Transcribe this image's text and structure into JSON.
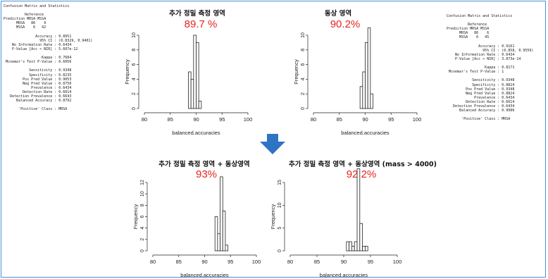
{
  "left_stats": {
    "lines": [
      "Confusion Matrix and Statistics",
      "",
      "          Reference",
      "Prediction MRSA MSSA",
      "      MRSA   86    9",
      "      MSSA    6   42",
      "",
      "               Accuracy : 0.8951",
      "                 95% CI : (0.8329, 0.9401)",
      "    No Information Rate : 0.6434",
      "    P-Value [Acc > NIR] : 5.607e-12",
      "",
      "                  Kappa : 0.7684",
      " Mcnemar's Test P-Value : 0.6056",
      "",
      "            Sensitivity : 0.9348",
      "            Specificity : 0.8235",
      "         Pos Pred Value : 0.9053",
      "         Neg Pred Value : 0.8750",
      "             Prevalence : 0.6434",
      "         Detection Rate : 0.6014",
      "   Detection Prevalence : 0.6643",
      "      Balanced Accuracy : 0.8792",
      "",
      "       'Positive' Class : MRSA"
    ]
  },
  "right_stats": {
    "lines": [
      "Confusion Matrix and Statistics",
      "",
      "          Reference",
      "Prediction MRSA MSSA",
      "      MRSA   86    6",
      "      MSSA    6   45",
      "",
      "               Accuracy : 0.9161",
      "                 95% CI : (0.858, 0.9559)",
      "    No Information Rate : 0.6434",
      "    P-Value [Acc > NIR] : 3.873e-14",
      "",
      "                  Kappa : 0.8171",
      " Mcnemar's Test P-Value : 1",
      "",
      "            Sensitivity : 0.9348",
      "            Specificity : 0.8824",
      "         Pos Pred Value : 0.9348",
      "         Neg Pred Value : 0.8824",
      "             Prevalence : 0.6434",
      "         Detection Rate : 0.6014",
      "   Detection Prevalence : 0.6434",
      "      Balanced Accuracy : 0.9086",
      "",
      "       'Positive' Class : MRSA"
    ]
  },
  "colors": {
    "accent_red": "#e8231f",
    "arrow_blue": "#2e73c4",
    "frame_blue": "#4a90d9"
  },
  "arrow_icon": "down-arrow-icon",
  "chart_data": [
    {
      "type": "bar",
      "title": "추가 정밀 측정 영역",
      "annotation": "89.7 %",
      "xlabel": "balanced.accuracies",
      "ylabel": "Frequency",
      "xlim": [
        80,
        100
      ],
      "ylim": [
        0,
        10
      ],
      "xticks": [
        "80",
        "85",
        "90",
        "95",
        "100"
      ],
      "yticks": [
        "0",
        "2",
        "4",
        "6",
        "8",
        "10"
      ],
      "bin_width": 0.5,
      "x": [
        88.5,
        89.0,
        89.5,
        90.0,
        90.5
      ],
      "values": [
        5,
        4,
        10,
        9,
        1
      ]
    },
    {
      "type": "bar",
      "title": "동상 영역",
      "annotation": "90.2%",
      "xlabel": "balanced.accuracies",
      "ylabel": "Frequency",
      "xlim": [
        80,
        100
      ],
      "ylim": [
        0,
        10
      ],
      "xticks": [
        "80",
        "85",
        "90",
        "95",
        "100"
      ],
      "yticks": [
        "0",
        "2",
        "4",
        "6",
        "8",
        "10"
      ],
      "bin_width": 0.5,
      "x": [
        89.0,
        89.5,
        90.0,
        90.5,
        91.0
      ],
      "values": [
        3,
        5,
        9,
        11,
        2
      ]
    },
    {
      "type": "bar",
      "title": "추가 정밀 측정 영역 + 동상영역",
      "annotation": "93%",
      "xlabel": "balanced.accuracies",
      "ylabel": "Frequency",
      "xlim": [
        80,
        100
      ],
      "ylim": [
        0,
        12
      ],
      "xticks": [
        "80",
        "85",
        "90",
        "95",
        "100"
      ],
      "yticks": [
        "0",
        "2",
        "4",
        "6",
        "8",
        "10",
        "12"
      ],
      "bin_width": 0.5,
      "x": [
        92.0,
        92.5,
        93.0,
        93.5,
        94.0
      ],
      "values": [
        6,
        3,
        13,
        7,
        1
      ]
    },
    {
      "type": "bar",
      "title": "추가 정밀 측정 영역 + 동상영역 (mass > 4000)",
      "annotation": "92.2%",
      "xlabel": "balanced.accuracies",
      "ylabel": "Frequency",
      "xlim": [
        80,
        100
      ],
      "ylim": [
        0,
        15
      ],
      "xticks": [
        "80",
        "85",
        "90",
        "95",
        "100"
      ],
      "yticks": [
        "0",
        "5",
        "10",
        "15"
      ],
      "bin_width": 0.5,
      "x": [
        90.5,
        91.0,
        91.5,
        92.0,
        92.5,
        93.0,
        93.5,
        94.0
      ],
      "values": [
        2,
        2,
        1,
        2,
        18,
        6,
        1,
        1
      ]
    }
  ]
}
